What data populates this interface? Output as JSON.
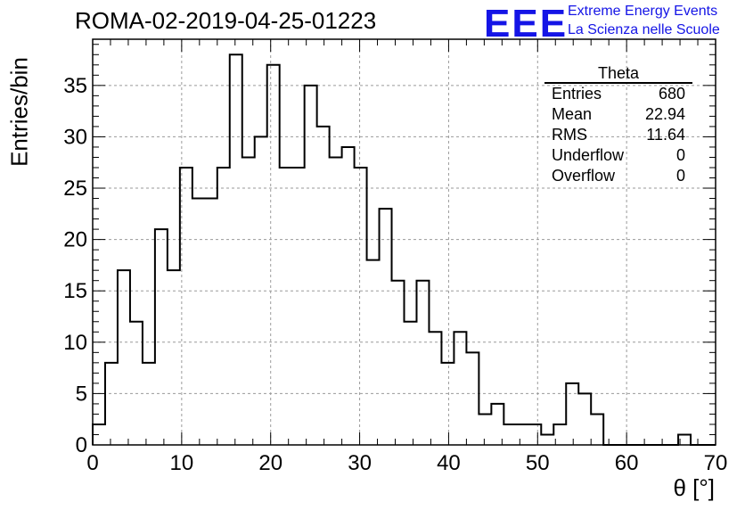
{
  "title": "ROMA-02-2019-04-25-01223",
  "logo": {
    "text": "EEE",
    "line1": "Extreme Energy Events",
    "line2": "La Scienza nelle Scuole",
    "color": "#1414e6"
  },
  "stats_box": {
    "title": "Theta",
    "rows": [
      {
        "label": "Entries",
        "value": "680"
      },
      {
        "label": "Mean",
        "value": "22.94"
      },
      {
        "label": "RMS",
        "value": "11.64"
      },
      {
        "label": "Underflow",
        "value": "0"
      },
      {
        "label": "Overflow",
        "value": "0"
      }
    ]
  },
  "chart_data": {
    "type": "bar",
    "histogram": true,
    "xlabel": "θ [°]",
    "ylabel": "Entries/bin",
    "xlim": [
      0,
      70
    ],
    "ylim": [
      0,
      39.5
    ],
    "grid": true,
    "bin_width": 1.4,
    "x_ticks": [
      0,
      10,
      20,
      30,
      40,
      50,
      60,
      70
    ],
    "y_ticks": [
      0,
      5,
      10,
      15,
      20,
      25,
      30,
      35
    ],
    "values": [
      2,
      8,
      17,
      12,
      8,
      21,
      17,
      27,
      24,
      24,
      27,
      38,
      28,
      30,
      37,
      27,
      27,
      35,
      31,
      28,
      29,
      27,
      18,
      23,
      16,
      12,
      16,
      11,
      8,
      11,
      9,
      3,
      4,
      2,
      2,
      2,
      1,
      2,
      6,
      5,
      3,
      0,
      0,
      0,
      0,
      0,
      0,
      1,
      0,
      0
    ]
  }
}
